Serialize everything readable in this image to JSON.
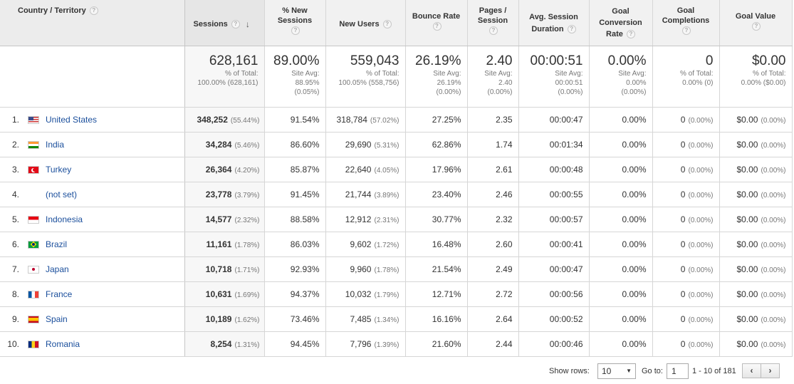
{
  "header": {
    "dimension": "Country / Territory",
    "sessions": "Sessions",
    "pct_new_sessions": "% New Sessions",
    "new_users": "New Users",
    "bounce_rate": "Bounce Rate",
    "pages_session": "Pages / Session",
    "avg_session_duration": "Avg. Session Duration",
    "goal_conversion_rate": "Goal Conversion Rate",
    "goal_completions": "Goal Completions",
    "goal_value": "Goal Value",
    "help": "?",
    "sort_arrow": "↓"
  },
  "totals": {
    "sessions": {
      "value": "628,161",
      "l1": "% of Total:",
      "l2": "100.00% (628,161)",
      "l3": ""
    },
    "pct_new_sessions": {
      "value": "89.00%",
      "l1": "Site Avg:",
      "l2": "88.95%",
      "l3": "(0.05%)"
    },
    "new_users": {
      "value": "559,043",
      "l1": "% of Total:",
      "l2": "100.05% (558,756)",
      "l3": ""
    },
    "bounce_rate": {
      "value": "26.19%",
      "l1": "Site Avg:",
      "l2": "26.19%",
      "l3": "(0.00%)"
    },
    "pages_session": {
      "value": "2.40",
      "l1": "Site Avg:",
      "l2": "2.40",
      "l3": "(0.00%)"
    },
    "avg_session_duration": {
      "value": "00:00:51",
      "l1": "Site Avg:",
      "l2": "00:00:51",
      "l3": "(0.00%)"
    },
    "goal_conversion_rate": {
      "value": "0.00%",
      "l1": "Site Avg:",
      "l2": "0.00%",
      "l3": "(0.00%)"
    },
    "goal_completions": {
      "value": "0",
      "l1": "% of Total:",
      "l2": "0.00% (0)",
      "l3": ""
    },
    "goal_value": {
      "value": "$0.00",
      "l1": "% of Total:",
      "l2": "0.00% ($0.00)",
      "l3": ""
    }
  },
  "rows": [
    {
      "idx": "1.",
      "country": "United States",
      "flag": "us",
      "sessions": "348,252",
      "sessions_pct": "(55.44%)",
      "pct_new": "91.54%",
      "new_users": "318,784",
      "new_users_pct": "(57.02%)",
      "bounce": "27.25%",
      "pages": "2.35",
      "duration": "00:00:47",
      "conv": "0.00%",
      "completions": "0",
      "completions_pct": "(0.00%)",
      "value": "$0.00",
      "value_pct": "(0.00%)"
    },
    {
      "idx": "2.",
      "country": "India",
      "flag": "in",
      "sessions": "34,284",
      "sessions_pct": "(5.46%)",
      "pct_new": "86.60%",
      "new_users": "29,690",
      "new_users_pct": "(5.31%)",
      "bounce": "62.86%",
      "pages": "1.74",
      "duration": "00:01:34",
      "conv": "0.00%",
      "completions": "0",
      "completions_pct": "(0.00%)",
      "value": "$0.00",
      "value_pct": "(0.00%)"
    },
    {
      "idx": "3.",
      "country": "Turkey",
      "flag": "tr",
      "sessions": "26,364",
      "sessions_pct": "(4.20%)",
      "pct_new": "85.87%",
      "new_users": "22,640",
      "new_users_pct": "(4.05%)",
      "bounce": "17.96%",
      "pages": "2.61",
      "duration": "00:00:48",
      "conv": "0.00%",
      "completions": "0",
      "completions_pct": "(0.00%)",
      "value": "$0.00",
      "value_pct": "(0.00%)"
    },
    {
      "idx": "4.",
      "country": "(not set)",
      "flag": "none",
      "sessions": "23,778",
      "sessions_pct": "(3.79%)",
      "pct_new": "91.45%",
      "new_users": "21,744",
      "new_users_pct": "(3.89%)",
      "bounce": "23.40%",
      "pages": "2.46",
      "duration": "00:00:55",
      "conv": "0.00%",
      "completions": "0",
      "completions_pct": "(0.00%)",
      "value": "$0.00",
      "value_pct": "(0.00%)"
    },
    {
      "idx": "5.",
      "country": "Indonesia",
      "flag": "id",
      "sessions": "14,577",
      "sessions_pct": "(2.32%)",
      "pct_new": "88.58%",
      "new_users": "12,912",
      "new_users_pct": "(2.31%)",
      "bounce": "30.77%",
      "pages": "2.32",
      "duration": "00:00:57",
      "conv": "0.00%",
      "completions": "0",
      "completions_pct": "(0.00%)",
      "value": "$0.00",
      "value_pct": "(0.00%)"
    },
    {
      "idx": "6.",
      "country": "Brazil",
      "flag": "br",
      "sessions": "11,161",
      "sessions_pct": "(1.78%)",
      "pct_new": "86.03%",
      "new_users": "9,602",
      "new_users_pct": "(1.72%)",
      "bounce": "16.48%",
      "pages": "2.60",
      "duration": "00:00:41",
      "conv": "0.00%",
      "completions": "0",
      "completions_pct": "(0.00%)",
      "value": "$0.00",
      "value_pct": "(0.00%)"
    },
    {
      "idx": "7.",
      "country": "Japan",
      "flag": "jp",
      "sessions": "10,718",
      "sessions_pct": "(1.71%)",
      "pct_new": "92.93%",
      "new_users": "9,960",
      "new_users_pct": "(1.78%)",
      "bounce": "21.54%",
      "pages": "2.49",
      "duration": "00:00:47",
      "conv": "0.00%",
      "completions": "0",
      "completions_pct": "(0.00%)",
      "value": "$0.00",
      "value_pct": "(0.00%)"
    },
    {
      "idx": "8.",
      "country": "France",
      "flag": "fr",
      "sessions": "10,631",
      "sessions_pct": "(1.69%)",
      "pct_new": "94.37%",
      "new_users": "10,032",
      "new_users_pct": "(1.79%)",
      "bounce": "12.71%",
      "pages": "2.72",
      "duration": "00:00:56",
      "conv": "0.00%",
      "completions": "0",
      "completions_pct": "(0.00%)",
      "value": "$0.00",
      "value_pct": "(0.00%)"
    },
    {
      "idx": "9.",
      "country": "Spain",
      "flag": "es",
      "sessions": "10,189",
      "sessions_pct": "(1.62%)",
      "pct_new": "73.46%",
      "new_users": "7,485",
      "new_users_pct": "(1.34%)",
      "bounce": "16.16%",
      "pages": "2.64",
      "duration": "00:00:52",
      "conv": "0.00%",
      "completions": "0",
      "completions_pct": "(0.00%)",
      "value": "$0.00",
      "value_pct": "(0.00%)"
    },
    {
      "idx": "10.",
      "country": "Romania",
      "flag": "ro",
      "sessions": "8,254",
      "sessions_pct": "(1.31%)",
      "pct_new": "94.45%",
      "new_users": "7,796",
      "new_users_pct": "(1.39%)",
      "bounce": "21.60%",
      "pages": "2.44",
      "duration": "00:00:46",
      "conv": "0.00%",
      "completions": "0",
      "completions_pct": "(0.00%)",
      "value": "$0.00",
      "value_pct": "(0.00%)"
    }
  ],
  "pager": {
    "show_rows_label": "Show rows:",
    "show_rows_value": "10",
    "caret": "▼",
    "goto_label": "Go to:",
    "goto_value": "1",
    "range": "1 - 10 of 181",
    "prev": "‹",
    "next": "›"
  },
  "colors": {
    "link": "#1b4f9c",
    "header_bg": "#f1f1f1",
    "sorted_column_bg": "#f7f7f7"
  }
}
